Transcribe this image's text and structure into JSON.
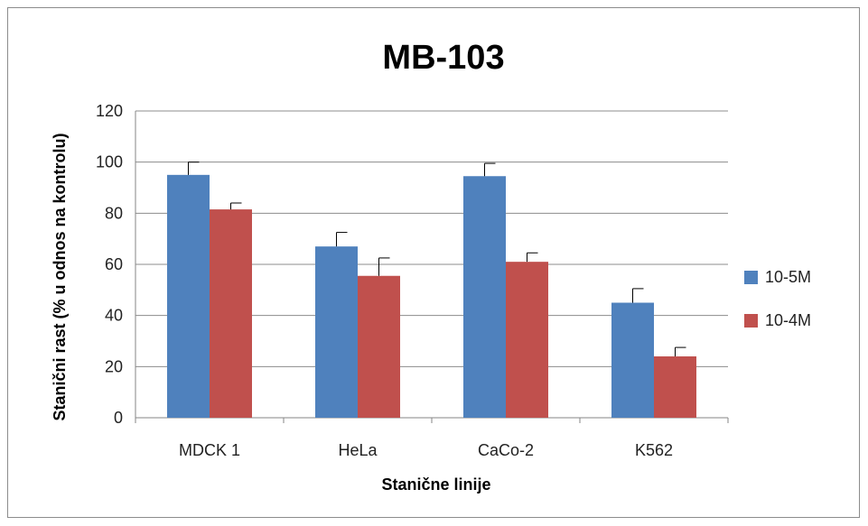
{
  "chart_data": {
    "type": "bar",
    "title": "MB-103",
    "xlabel": "Stanične linije",
    "ylabel": "Stanični rast (% u odnos na kontrolu)",
    "categories": [
      "MDCK 1",
      "HeLa",
      "CaCo-2",
      "K562"
    ],
    "series": [
      {
        "name": "10-5M",
        "color": "#4f81bd",
        "values": [
          95,
          67,
          94.5,
          45
        ],
        "errors": [
          5,
          5.5,
          5,
          5.5
        ]
      },
      {
        "name": "10-4M",
        "color": "#c0504d",
        "values": [
          81.5,
          55.5,
          61,
          24
        ],
        "errors": [
          2.5,
          7,
          3.5,
          3.5
        ]
      }
    ],
    "ylim": [
      0,
      120
    ],
    "yticks": [
      0,
      20,
      40,
      60,
      80,
      100,
      120
    ],
    "grid": true,
    "legend_position": "right"
  }
}
